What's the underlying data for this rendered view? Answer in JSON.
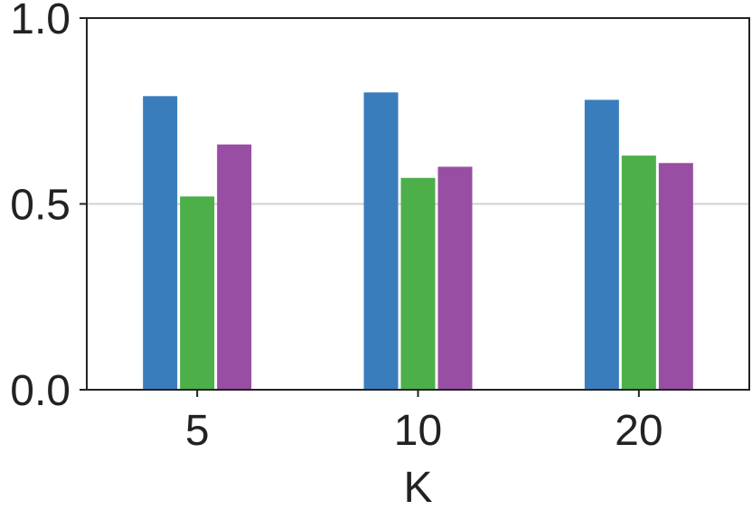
{
  "chart_data": {
    "type": "bar",
    "categories": [
      "5",
      "10",
      "20"
    ],
    "series": [
      {
        "values": [
          0.79,
          0.8,
          0.78
        ],
        "color": "#3a7dbc"
      },
      {
        "values": [
          0.52,
          0.57,
          0.63
        ],
        "color": "#4caf4a"
      },
      {
        "values": [
          0.66,
          0.6,
          0.61
        ],
        "color": "#984ea3"
      }
    ],
    "xlabel": "K",
    "ylabel": "",
    "ylim": [
      0,
      1
    ],
    "yticks": [
      "0.0",
      "0.5",
      "1.0"
    ],
    "grid": "horizontal"
  }
}
